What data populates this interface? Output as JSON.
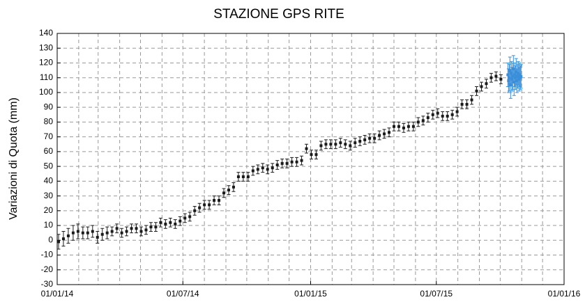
{
  "chart_data": {
    "type": "scatter",
    "title": "STAZIONE GPS RITE",
    "y_label": "Variazioni di Quota (mm)",
    "xlim": [
      "2014-01-01",
      "2016-01-01"
    ],
    "xticks": [
      {
        "value": "2014-01-01",
        "label": "01/01/14"
      },
      {
        "value": "2014-07-01",
        "label": "01/07/14"
      },
      {
        "value": "2015-01-01",
        "label": "01/01/15"
      },
      {
        "value": "2015-07-01",
        "label": "01/07/15"
      },
      {
        "value": "2016-01-01",
        "label": "01/01/16"
      }
    ],
    "ylim": [
      -30,
      140
    ],
    "yticks": [
      -30,
      -20,
      -10,
      0,
      10,
      20,
      30,
      40,
      50,
      60,
      70,
      80,
      90,
      100,
      110,
      120,
      130,
      140
    ],
    "grid": true,
    "series": [
      {
        "color": "#1a1a1a",
        "x": [
          "2014-01-03",
          "2014-01-10",
          "2014-01-17",
          "2014-01-24",
          "2014-01-31",
          "2014-02-07",
          "2014-02-14",
          "2014-02-21",
          "2014-02-28",
          "2014-03-07",
          "2014-03-14",
          "2014-03-21",
          "2014-03-28",
          "2014-04-04",
          "2014-04-11",
          "2014-04-18",
          "2014-04-25",
          "2014-05-02",
          "2014-05-09",
          "2014-05-16",
          "2014-05-23",
          "2014-05-30",
          "2014-06-06",
          "2014-06-13",
          "2014-06-20",
          "2014-06-27",
          "2014-07-04",
          "2014-07-11",
          "2014-07-18",
          "2014-07-25",
          "2014-08-01",
          "2014-08-08",
          "2014-08-15",
          "2014-08-22",
          "2014-08-29",
          "2014-09-05",
          "2014-09-12",
          "2014-09-19",
          "2014-09-26",
          "2014-10-03",
          "2014-10-10",
          "2014-10-17",
          "2014-10-24",
          "2014-10-31",
          "2014-11-07",
          "2014-11-14",
          "2014-11-21",
          "2014-11-28",
          "2014-12-05",
          "2014-12-12",
          "2014-12-19",
          "2014-12-26",
          "2015-01-02",
          "2015-01-09",
          "2015-01-16",
          "2015-01-23",
          "2015-01-30",
          "2015-02-06",
          "2015-02-13",
          "2015-02-20",
          "2015-02-27",
          "2015-03-06",
          "2015-03-13",
          "2015-03-20",
          "2015-03-27",
          "2015-04-03",
          "2015-04-10",
          "2015-04-17",
          "2015-04-24",
          "2015-05-01",
          "2015-05-08",
          "2015-05-15",
          "2015-05-22",
          "2015-05-29",
          "2015-06-05",
          "2015-06-12",
          "2015-06-19",
          "2015-06-26",
          "2015-07-03",
          "2015-07-10",
          "2015-07-17",
          "2015-07-24",
          "2015-07-31",
          "2015-08-07",
          "2015-08-14",
          "2015-08-21",
          "2015-08-28",
          "2015-09-04",
          "2015-09-11",
          "2015-09-18",
          "2015-09-25",
          "2015-10-02"
        ],
        "values": [
          -1,
          1,
          3,
          5,
          6,
          5,
          5,
          6,
          2,
          4,
          5,
          6,
          8,
          5,
          6,
          8,
          8,
          6,
          7,
          9,
          9,
          12,
          11,
          12,
          11,
          13,
          15,
          16,
          20,
          22,
          24,
          24,
          27,
          27,
          32,
          34,
          36,
          43,
          43,
          43,
          47,
          48,
          49,
          48,
          49,
          51,
          52,
          52,
          53,
          53,
          54,
          62,
          58,
          58,
          64,
          65,
          65,
          65,
          66,
          65,
          64,
          66,
          67,
          68,
          69,
          69,
          71,
          72,
          73,
          77,
          77,
          76,
          77,
          77,
          80,
          81,
          83,
          85,
          86,
          84,
          84,
          85,
          87,
          92,
          92,
          95,
          101,
          104,
          106,
          110,
          111,
          109
        ],
        "errors": [
          5,
          5,
          5,
          5,
          5,
          4,
          4,
          4,
          4,
          4,
          4,
          3,
          3,
          3,
          3,
          3,
          3,
          3,
          3,
          3,
          3,
          3,
          3,
          3,
          3,
          3,
          3,
          3,
          3,
          3,
          3,
          3,
          3,
          3,
          3,
          3,
          3,
          3,
          3,
          3,
          3,
          3,
          3,
          3,
          3,
          3,
          3,
          3,
          3,
          3,
          3,
          3,
          3,
          3,
          3,
          3,
          3,
          3,
          3,
          3,
          3,
          3,
          3,
          3,
          3,
          3,
          3,
          3,
          3,
          3,
          3,
          3,
          3,
          3,
          3,
          3,
          3,
          3,
          3,
          3,
          3,
          3,
          3,
          3,
          3,
          3,
          3,
          3,
          3,
          3,
          3,
          3
        ]
      },
      {
        "color": "#3a8fd9",
        "x": [
          "2015-10-12",
          "2015-10-13",
          "2015-10-14",
          "2015-10-15",
          "2015-10-16",
          "2015-10-17",
          "2015-10-18",
          "2015-10-19",
          "2015-10-20",
          "2015-10-21",
          "2015-10-22",
          "2015-10-23",
          "2015-10-24",
          "2015-10-25",
          "2015-10-26",
          "2015-10-27",
          "2015-10-28",
          "2015-10-29",
          "2015-10-30",
          "2015-10-31"
        ],
        "values": [
          112,
          108,
          110,
          115,
          105,
          113,
          109,
          111,
          116,
          107,
          112,
          110,
          114,
          108,
          111,
          113,
          109,
          112,
          110,
          111
        ],
        "errors": [
          8,
          8,
          9,
          9,
          9,
          8,
          8,
          9,
          9,
          9,
          8,
          8,
          9,
          8,
          8,
          8,
          8,
          8,
          8,
          8
        ]
      }
    ]
  }
}
